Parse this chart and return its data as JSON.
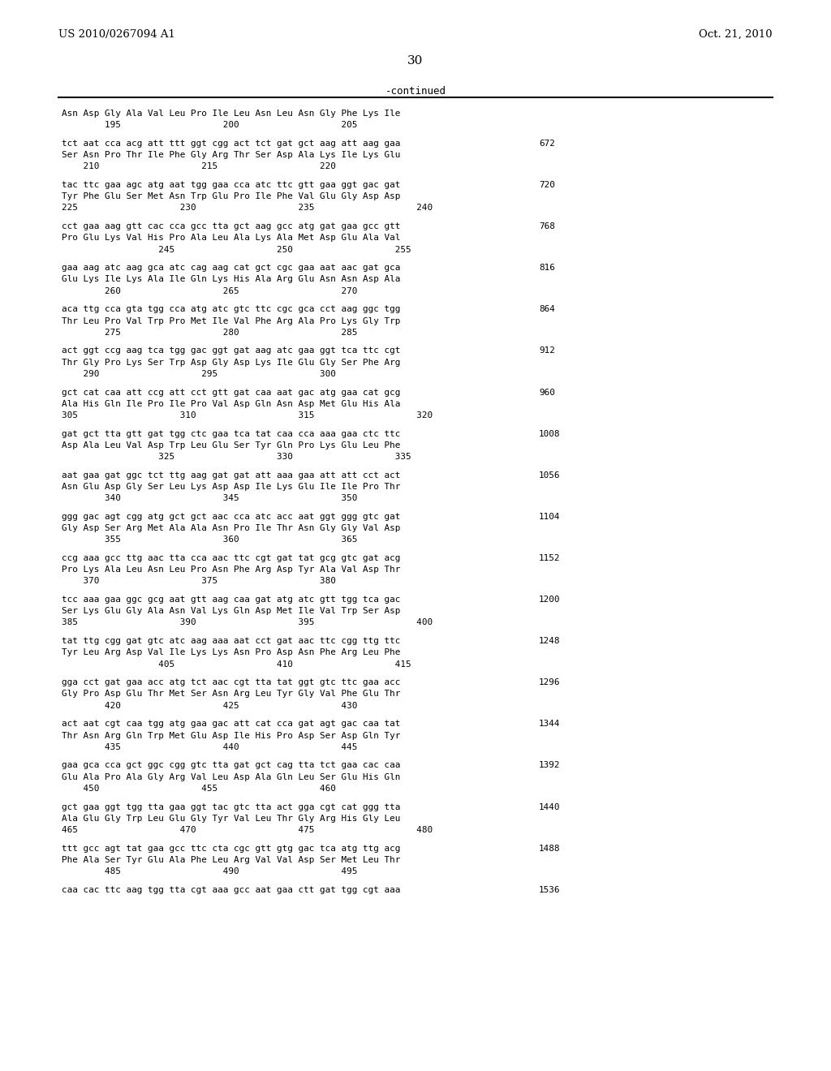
{
  "header_left": "US 2010/0267094 A1",
  "header_right": "Oct. 21, 2010",
  "page_number": "30",
  "continued_label": "-continued",
  "background_color": "#ffffff",
  "text_color": "#000000",
  "lines": [
    {
      "type": "aa_header",
      "text": "Asn Asp Gly Ala Val Leu Pro Ile Leu Asn Leu Asn Gly Phe Lys Ile"
    },
    {
      "type": "aa_numbers",
      "text": "        195                   200                   205"
    },
    {
      "type": "blank"
    },
    {
      "type": "dna",
      "text": "tct aat cca acg att ttt ggt cgg act tct gat gct aag att aag gaa",
      "num": "672"
    },
    {
      "type": "aa",
      "text": "Ser Asn Pro Thr Ile Phe Gly Arg Thr Ser Asp Ala Lys Ile Lys Glu"
    },
    {
      "type": "aa_numbers",
      "text": "    210                   215                   220"
    },
    {
      "type": "blank"
    },
    {
      "type": "dna",
      "text": "tac ttc gaa agc atg aat tgg gaa cca atc ttc gtt gaa ggt gac gat",
      "num": "720"
    },
    {
      "type": "aa",
      "text": "Tyr Phe Glu Ser Met Asn Trp Glu Pro Ile Phe Val Glu Gly Asp Asp"
    },
    {
      "type": "aa_numbers",
      "text": "225                   230                   235                   240"
    },
    {
      "type": "blank"
    },
    {
      "type": "dna",
      "text": "cct gaa aag gtt cac cca gcc tta gct aag gcc atg gat gaa gcc gtt",
      "num": "768"
    },
    {
      "type": "aa",
      "text": "Pro Glu Lys Val His Pro Ala Leu Ala Lys Ala Met Asp Glu Ala Val"
    },
    {
      "type": "aa_numbers",
      "text": "                  245                   250                   255"
    },
    {
      "type": "blank"
    },
    {
      "type": "dna",
      "text": "gaa aag atc aag gca atc cag aag cat gct cgc gaa aat aac gat gca",
      "num": "816"
    },
    {
      "type": "aa",
      "text": "Glu Lys Ile Lys Ala Ile Gln Lys His Ala Arg Glu Asn Asn Asp Ala"
    },
    {
      "type": "aa_numbers",
      "text": "        260                   265                   270"
    },
    {
      "type": "blank"
    },
    {
      "type": "dna",
      "text": "aca ttg cca gta tgg cca atg atc gtc ttc cgc gca cct aag ggc tgg",
      "num": "864"
    },
    {
      "type": "aa",
      "text": "Thr Leu Pro Val Trp Pro Met Ile Val Phe Arg Ala Pro Lys Gly Trp"
    },
    {
      "type": "aa_numbers",
      "text": "        275                   280                   285"
    },
    {
      "type": "blank"
    },
    {
      "type": "dna",
      "text": "act ggt ccg aag tca tgg gac ggt gat aag atc gaa ggt tca ttc cgt",
      "num": "912"
    },
    {
      "type": "aa",
      "text": "Thr Gly Pro Lys Ser Trp Asp Gly Asp Lys Ile Glu Gly Ser Phe Arg"
    },
    {
      "type": "aa_numbers",
      "text": "    290                   295                   300"
    },
    {
      "type": "blank"
    },
    {
      "type": "dna",
      "text": "gct cat caa att ccg att cct gtt gat caa aat gac atg gaa cat gcg",
      "num": "960"
    },
    {
      "type": "aa",
      "text": "Ala His Gln Ile Pro Ile Pro Val Asp Gln Asn Asp Met Glu His Ala"
    },
    {
      "type": "aa_numbers",
      "text": "305                   310                   315                   320"
    },
    {
      "type": "blank"
    },
    {
      "type": "dna",
      "text": "gat gct tta gtt gat tgg ctc gaa tca tat caa cca aaa gaa ctc ttc",
      "num": "1008"
    },
    {
      "type": "aa",
      "text": "Asp Ala Leu Val Asp Trp Leu Glu Ser Tyr Gln Pro Lys Glu Leu Phe"
    },
    {
      "type": "aa_numbers",
      "text": "                  325                   330                   335"
    },
    {
      "type": "blank"
    },
    {
      "type": "dna",
      "text": "aat gaa gat ggc tct ttg aag gat gat att aaa gaa att att cct act",
      "num": "1056"
    },
    {
      "type": "aa",
      "text": "Asn Glu Asp Gly Ser Leu Lys Asp Asp Ile Lys Glu Ile Ile Pro Thr"
    },
    {
      "type": "aa_numbers",
      "text": "        340                   345                   350"
    },
    {
      "type": "blank"
    },
    {
      "type": "dna",
      "text": "ggg gac agt cgg atg gct gct aac cca atc acc aat ggt ggg gtc gat",
      "num": "1104"
    },
    {
      "type": "aa",
      "text": "Gly Asp Ser Arg Met Ala Ala Asn Pro Ile Thr Asn Gly Gly Val Asp"
    },
    {
      "type": "aa_numbers",
      "text": "        355                   360                   365"
    },
    {
      "type": "blank"
    },
    {
      "type": "dna",
      "text": "ccg aaa gcc ttg aac tta cca aac ttc cgt gat tat gcg gtc gat acg",
      "num": "1152"
    },
    {
      "type": "aa",
      "text": "Pro Lys Ala Leu Asn Leu Pro Asn Phe Arg Asp Tyr Ala Val Asp Thr"
    },
    {
      "type": "aa_numbers",
      "text": "    370                   375                   380"
    },
    {
      "type": "blank"
    },
    {
      "type": "dna",
      "text": "tcc aaa gaa ggc gcg aat gtt aag caa gat atg atc gtt tgg tca gac",
      "num": "1200"
    },
    {
      "type": "aa",
      "text": "Ser Lys Glu Gly Ala Asn Val Lys Gln Asp Met Ile Val Trp Ser Asp"
    },
    {
      "type": "aa_numbers",
      "text": "385                   390                   395                   400"
    },
    {
      "type": "blank"
    },
    {
      "type": "dna",
      "text": "tat ttg cgg gat gtc atc aag aaa aat cct gat aac ttc cgg ttg ttc",
      "num": "1248"
    },
    {
      "type": "aa",
      "text": "Tyr Leu Arg Asp Val Ile Lys Lys Asn Pro Asp Asn Phe Arg Leu Phe"
    },
    {
      "type": "aa_numbers",
      "text": "                  405                   410                   415"
    },
    {
      "type": "blank"
    },
    {
      "type": "dna",
      "text": "gga cct gat gaa acc atg tct aac cgt tta tat ggt gtc ttc gaa acc",
      "num": "1296"
    },
    {
      "type": "aa",
      "text": "Gly Pro Asp Glu Thr Met Ser Asn Arg Leu Tyr Gly Val Phe Glu Thr"
    },
    {
      "type": "aa_numbers",
      "text": "        420                   425                   430"
    },
    {
      "type": "blank"
    },
    {
      "type": "dna",
      "text": "act aat cgt caa tgg atg gaa gac att cat cca gat agt gac caa tat",
      "num": "1344"
    },
    {
      "type": "aa",
      "text": "Thr Asn Arg Gln Trp Met Glu Asp Ile His Pro Asp Ser Asp Gln Tyr"
    },
    {
      "type": "aa_numbers",
      "text": "        435                   440                   445"
    },
    {
      "type": "blank"
    },
    {
      "type": "dna",
      "text": "gaa gca cca gct ggc cgg gtc tta gat gct cag tta tct gaa cac caa",
      "num": "1392"
    },
    {
      "type": "aa",
      "text": "Glu Ala Pro Ala Gly Arg Val Leu Asp Ala Gln Leu Ser Glu His Gln"
    },
    {
      "type": "aa_numbers",
      "text": "    450                   455                   460"
    },
    {
      "type": "blank"
    },
    {
      "type": "dna",
      "text": "gct gaa ggt tgg tta gaa ggt tac gtc tta act gga cgt cat ggg tta",
      "num": "1440"
    },
    {
      "type": "aa",
      "text": "Ala Glu Gly Trp Leu Glu Gly Tyr Val Leu Thr Gly Arg His Gly Leu"
    },
    {
      "type": "aa_numbers",
      "text": "465                   470                   475                   480"
    },
    {
      "type": "blank"
    },
    {
      "type": "dna",
      "text": "ttt gcc agt tat gaa gcc ttc cta cgc gtt gtg gac tca atg ttg acg",
      "num": "1488"
    },
    {
      "type": "aa",
      "text": "Phe Ala Ser Tyr Glu Ala Phe Leu Arg Val Val Asp Ser Met Leu Thr"
    },
    {
      "type": "aa_numbers",
      "text": "        485                   490                   495"
    },
    {
      "type": "blank"
    },
    {
      "type": "dna",
      "text": "caa cac ttc aag tgg tta cgt aaa gcc aat gaa ctt gat tgg cgt aaa",
      "num": "1536"
    }
  ]
}
